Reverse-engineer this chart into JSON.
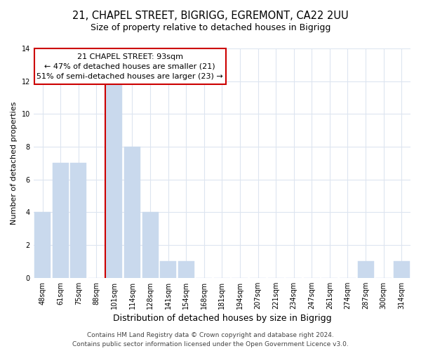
{
  "title": "21, CHAPEL STREET, BIGRIGG, EGREMONT, CA22 2UU",
  "subtitle": "Size of property relative to detached houses in Bigrigg",
  "xlabel": "Distribution of detached houses by size in Bigrigg",
  "ylabel": "Number of detached properties",
  "bar_labels": [
    "48sqm",
    "61sqm",
    "75sqm",
    "88sqm",
    "101sqm",
    "114sqm",
    "128sqm",
    "141sqm",
    "154sqm",
    "168sqm",
    "181sqm",
    "194sqm",
    "207sqm",
    "221sqm",
    "234sqm",
    "247sqm",
    "261sqm",
    "274sqm",
    "287sqm",
    "300sqm",
    "314sqm"
  ],
  "bar_values": [
    4,
    7,
    7,
    0,
    12,
    8,
    4,
    1,
    1,
    0,
    0,
    0,
    0,
    0,
    0,
    0,
    0,
    0,
    1,
    0,
    1
  ],
  "bar_color": "#c9d9ed",
  "vline_index": 4,
  "vline_color": "#cc0000",
  "ylim": [
    0,
    14
  ],
  "yticks": [
    0,
    2,
    4,
    6,
    8,
    10,
    12,
    14
  ],
  "annotation_title": "21 CHAPEL STREET: 93sqm",
  "annotation_line1": "← 47% of detached houses are smaller (21)",
  "annotation_line2": "51% of semi-detached houses are larger (23) →",
  "annotation_box_color": "#ffffff",
  "annotation_box_edge": "#cc0000",
  "footer1": "Contains HM Land Registry data © Crown copyright and database right 2024.",
  "footer2": "Contains public sector information licensed under the Open Government Licence v3.0.",
  "background_color": "#ffffff",
  "grid_color": "#dde5f0",
  "title_fontsize": 10.5,
  "subtitle_fontsize": 9,
  "xlabel_fontsize": 9,
  "ylabel_fontsize": 8,
  "tick_fontsize": 7,
  "annotation_fontsize": 8,
  "footer_fontsize": 6.5
}
